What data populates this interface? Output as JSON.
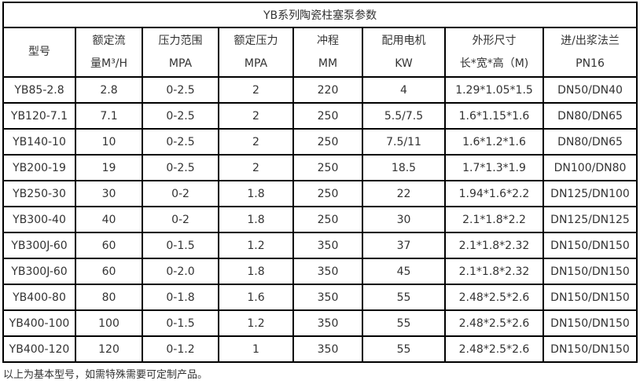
{
  "title": "YB系列陶瓷柱塞泵参数",
  "headers": [
    {
      "line1": "型号",
      "line2": ""
    },
    {
      "line1": "额定流",
      "line2": "量M³/H"
    },
    {
      "line1": "压力范围",
      "line2": "MPA"
    },
    {
      "line1": "额定压力",
      "line2": "MPA"
    },
    {
      "line1": "冲程",
      "line2": "MM"
    },
    {
      "line1": "配用电机",
      "line2": "KW"
    },
    {
      "line1": "外形尺寸",
      "line2": "长*宽*高（M)"
    },
    {
      "line1": "进/出浆法兰",
      "line2": "PN16"
    }
  ],
  "rows": [
    [
      "YB85-2.8",
      "2.8",
      "0-2.5",
      "2",
      "220",
      "4",
      "1.29*1.05*1.5",
      "DN50/DN40"
    ],
    [
      "YB120-7.1",
      "7.1",
      "0-2.5",
      "2",
      "250",
      "5.5/7.5",
      "1.6*1.15*1.6",
      "DN80/DN65"
    ],
    [
      "YB140-10",
      "10",
      "0-2.5",
      "2",
      "250",
      "7.5/11",
      "1.6*1.2*1.6",
      "DN80/DN65"
    ],
    [
      "YB200-19",
      "19",
      "0-2.5",
      "2",
      "250",
      "18.5",
      "1.7*1.3*1.9",
      "DN100/DN80"
    ],
    [
      "YB250-30",
      "30",
      "0-2",
      "1.8",
      "250",
      "22",
      "1.94*1.6*2.2",
      "DN125/DN100"
    ],
    [
      "YB300-40",
      "40",
      "0-2",
      "1.8",
      "250",
      "30",
      "2.1*1.8*2.2",
      "DN125/DN125"
    ],
    [
      "YB300J-60",
      "60",
      "0-1.5",
      "1.2",
      "350",
      "37",
      "2.1*1.8*2.32",
      "DN150/DN150"
    ],
    [
      "YB300J-60",
      "60",
      "0-2.0",
      "1.8",
      "350",
      "45",
      "2.1*1.8*2.32",
      "DN150/DN150"
    ],
    [
      "YB400-80",
      "80",
      "0-1.8",
      "1.6",
      "350",
      "55",
      "2.48*2.5*2.6",
      "DN150/DN150"
    ],
    [
      "YB400-100",
      "100",
      "0-1.5",
      "1.2",
      "350",
      "55",
      "2.48*2.5*2.6",
      "DN150/DN150"
    ],
    [
      "YB400-120",
      "120",
      "0-1.2",
      "1",
      "350",
      "55",
      "2.48*2.5*2.6",
      "DN150/DN150"
    ]
  ],
  "note": "以上为基本型号，如需特殊需要可定制产品。"
}
